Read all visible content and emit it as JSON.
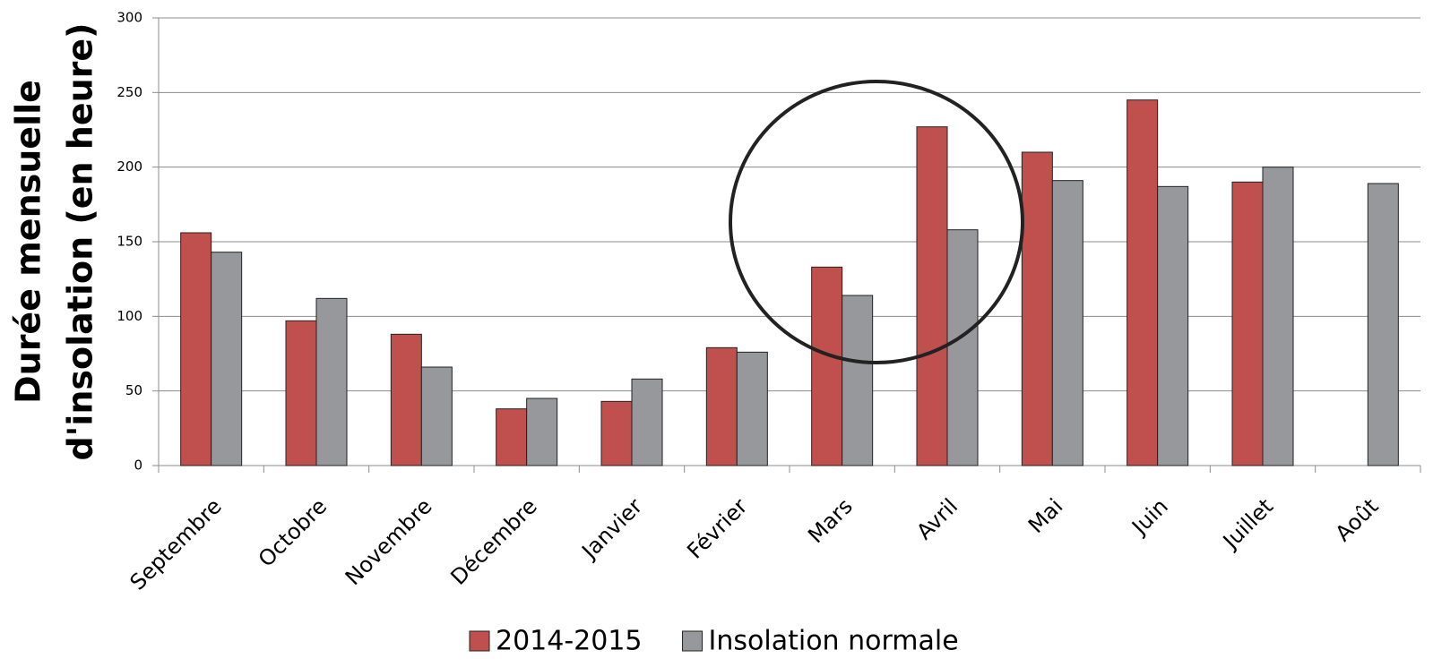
{
  "chart_data": {
    "type": "bar",
    "ylabel": [
      "Durée mensuelle",
      "d'insolation (en heure)"
    ],
    "categories": [
      "Septembre",
      "Octobre",
      "Novembre",
      "Décembre",
      "Janvier",
      "Février",
      "Mars",
      "Avril",
      "Mai",
      "Juin",
      "Juillet",
      "Août"
    ],
    "series": [
      {
        "name": "2014-2015",
        "color": "#c0504d",
        "values": [
          156,
          97,
          88,
          38,
          43,
          79,
          133,
          227,
          210,
          245,
          190,
          null
        ]
      },
      {
        "name": "Insolation normale",
        "color": "#97989c",
        "values": [
          143,
          112,
          66,
          45,
          58,
          76,
          114,
          158,
          191,
          187,
          200,
          189
        ]
      }
    ],
    "ylim": [
      0,
      300
    ],
    "yticks": [
      0,
      50,
      100,
      150,
      200,
      250,
      300
    ],
    "grid": true,
    "legend": "bottom"
  }
}
